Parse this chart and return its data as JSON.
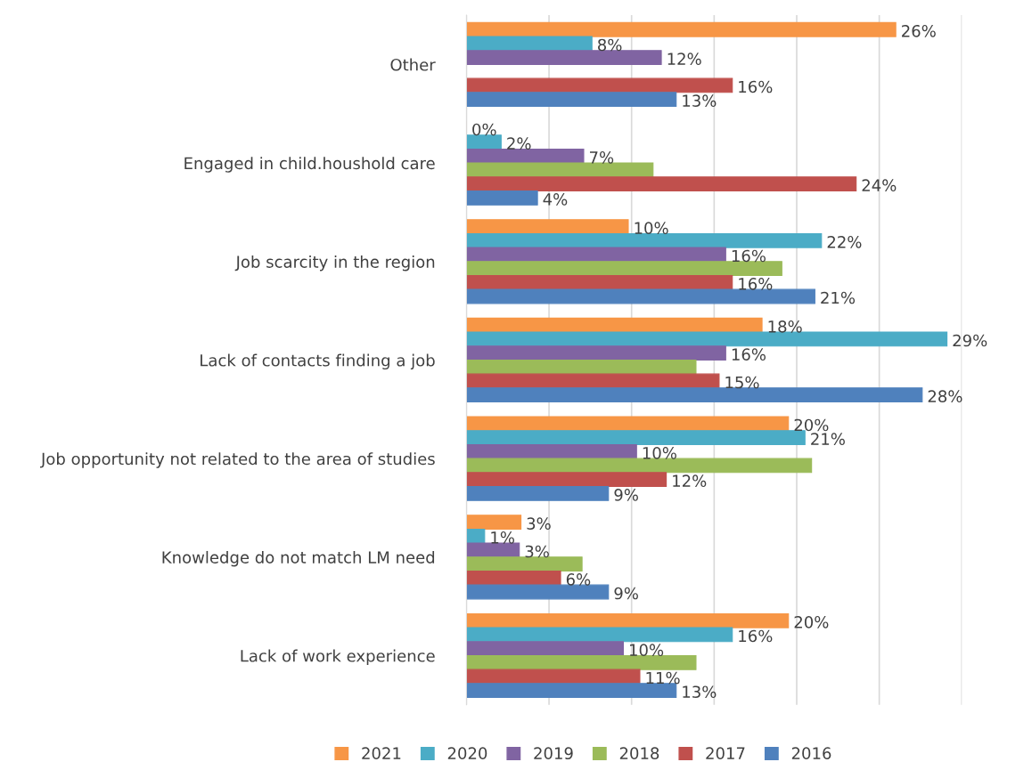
{
  "chart_data": {
    "type": "bar",
    "orientation": "horizontal",
    "categories": [
      "Other",
      "Engaged in child.houshold care",
      "Job scarcity in the region",
      "Lack of contacts finding a job",
      "Job opportunity not related to the area of studies",
      "Knowledge do not match LM need",
      "Lack of work experience"
    ],
    "series": [
      {
        "name": "2021",
        "color": "#f79646",
        "values": [
          26,
          0,
          9.8,
          17.9,
          19.5,
          3.3,
          19.5
        ],
        "value_labels": [
          "26%",
          "0%",
          "10%",
          "18%",
          "20%",
          "3%",
          "20%"
        ]
      },
      {
        "name": "2020",
        "color": "#4bacc6",
        "values": [
          7.6,
          2.1,
          21.5,
          29.1,
          20.5,
          1.1,
          16.1
        ],
        "value_labels": [
          "8%",
          "2%",
          "22%",
          "29%",
          "21%",
          "1%",
          "16%"
        ]
      },
      {
        "name": "2019",
        "color": "#8064a2",
        "values": [
          11.8,
          7.1,
          15.7,
          15.7,
          10.3,
          3.2,
          9.5
        ],
        "value_labels": [
          "12%",
          "7%",
          "16%",
          "16%",
          "10%",
          "3%",
          "10%"
        ]
      },
      {
        "name": "2018",
        "color": "#9bbb59",
        "values": [
          null,
          11.3,
          19.1,
          13.9,
          20.9,
          7.0,
          13.9
        ]
      },
      {
        "name": "2017",
        "color": "#c0504d",
        "values": [
          16.1,
          23.6,
          16.1,
          15.3,
          12.1,
          5.7,
          10.5
        ],
        "value_labels": [
          "16%",
          "24%",
          "16%",
          "15%",
          "12%",
          "6%",
          "11%"
        ]
      },
      {
        "name": "2016",
        "color": "#4f81bd",
        "values": [
          12.7,
          4.3,
          21.1,
          27.6,
          8.6,
          8.6,
          12.7
        ],
        "value_labels": [
          "13%",
          "4%",
          "21%",
          "28%",
          "9%",
          "9%",
          "13%"
        ]
      }
    ],
    "xlim": [
      0,
      30
    ],
    "xticks": [
      {
        "value": 0,
        "label": null
      },
      {
        "value": 5,
        "label": null
      },
      {
        "value": 10,
        "label": null
      },
      {
        "value": 15,
        "label": null
      },
      {
        "value": 20,
        "label": null
      },
      {
        "value": 25,
        "label": null
      },
      {
        "value": 30,
        "label": null
      }
    ],
    "tick_labels": "y",
    "grid": "x",
    "legend": "bottom"
  }
}
